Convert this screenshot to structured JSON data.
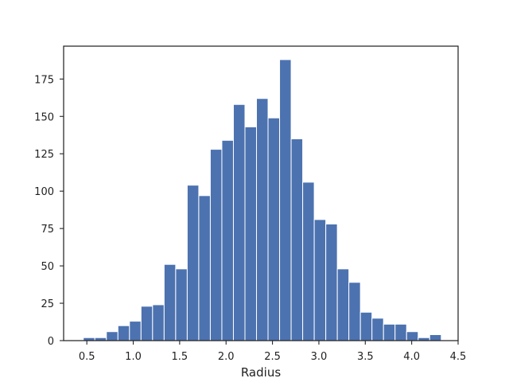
{
  "chart_data": {
    "type": "bar",
    "xlabel": "Radius",
    "ylabel": "",
    "title": "",
    "bin_start": 0.462,
    "bin_width": 0.1244,
    "counts": [
      2,
      2,
      6,
      10,
      13,
      23,
      24,
      51,
      48,
      104,
      97,
      128,
      134,
      158,
      143,
      162,
      149,
      188,
      135,
      106,
      81,
      78,
      48,
      39,
      19,
      15,
      11,
      11,
      6,
      2,
      4
    ],
    "xlim": [
      0.25,
      4.5
    ],
    "ylim": [
      0,
      197
    ],
    "xticks": [
      0.5,
      1.0,
      1.5,
      2.0,
      2.5,
      3.0,
      3.5,
      4.0,
      4.5
    ],
    "xtick_labels": [
      "0.5",
      "1.0",
      "1.5",
      "2.0",
      "2.5",
      "3.0",
      "3.5",
      "4.0",
      "4.5"
    ],
    "yticks": [
      0,
      25,
      50,
      75,
      100,
      125,
      150,
      175
    ],
    "ytick_labels": [
      "0",
      "25",
      "50",
      "75",
      "100",
      "125",
      "150",
      "175"
    ],
    "bar_color": "#4c72b0",
    "grid": false,
    "legend": "none"
  }
}
